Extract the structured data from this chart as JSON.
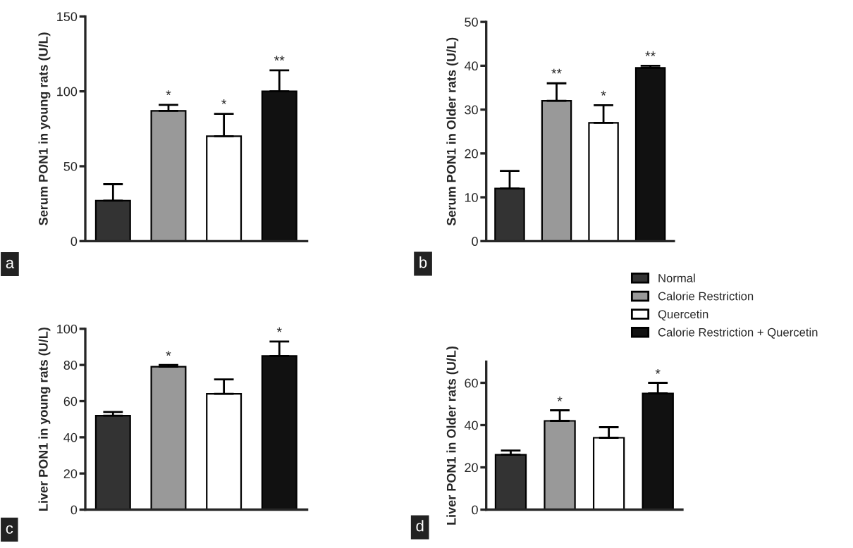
{
  "chart_data": [
    {
      "type": "bar",
      "ylabel": "Serum PON1 in young rats (U/L)",
      "categories": [
        null
      ],
      "ylim": [
        0,
        150
      ],
      "yticks": [
        0,
        50,
        100,
        150
      ],
      "annotations": [
        "a"
      ],
      "series": [
        {
          "color": "#333333",
          "values": [
            27
          ],
          "errors": [
            11
          ]
        },
        {
          "color": "#999999",
          "values": [
            87
          ],
          "errors": [
            4
          ],
          "value_labels": [
            "*"
          ]
        },
        {
          "color": "#ffffff",
          "values": [
            70
          ],
          "errors": [
            15
          ],
          "value_labels": [
            "*"
          ]
        },
        {
          "color": "#111111",
          "values": [
            100
          ],
          "errors": [
            14
          ],
          "value_labels": [
            "**"
          ]
        }
      ]
    },
    {
      "type": "bar",
      "ylabel": "Serum PON1 in Older rats (U/L)",
      "categories": [
        null
      ],
      "ylim": [
        0,
        50
      ],
      "yticks": [
        0,
        10,
        20,
        30,
        40,
        50
      ],
      "annotations": [
        "b"
      ],
      "legend": "bottom right",
      "series": [
        {
          "name": "Normal",
          "color": "#333333",
          "values": [
            12
          ],
          "errors": [
            4
          ]
        },
        {
          "name": "Calorie Restriction",
          "color": "#999999",
          "values": [
            32
          ],
          "errors": [
            4
          ],
          "value_labels": [
            "**"
          ]
        },
        {
          "name": "Quercetin",
          "color": "#ffffff",
          "values": [
            27
          ],
          "errors": [
            4
          ],
          "value_labels": [
            "*"
          ]
        },
        {
          "name": "Calorie Restriction + Quercetin",
          "color": "#111111",
          "values": [
            39.5
          ],
          "errors": [
            0.5
          ],
          "value_labels": [
            "**"
          ]
        }
      ]
    },
    {
      "type": "bar",
      "ylabel": "Liver PON1 in young rats (U/L)",
      "categories": [
        null
      ],
      "ylim": [
        0,
        100
      ],
      "yticks": [
        0,
        20,
        40,
        60,
        80,
        100
      ],
      "annotations": [
        "c"
      ],
      "series": [
        {
          "color": "#333333",
          "values": [
            52
          ],
          "errors": [
            2
          ]
        },
        {
          "color": "#999999",
          "values": [
            79
          ],
          "errors": [
            1
          ],
          "value_labels": [
            "*"
          ]
        },
        {
          "color": "#ffffff",
          "values": [
            64
          ],
          "errors": [
            8
          ]
        },
        {
          "color": "#111111",
          "values": [
            85
          ],
          "errors": [
            8
          ],
          "value_labels": [
            "*"
          ]
        }
      ]
    },
    {
      "type": "bar",
      "ylabel": "Liver PON1 in Older rats (U/L)",
      "categories": [
        null
      ],
      "ylim": [
        0,
        70
      ],
      "yticks": [
        0,
        20,
        40,
        60
      ],
      "annotations": [
        "d"
      ],
      "series": [
        {
          "color": "#333333",
          "values": [
            26
          ],
          "errors": [
            2
          ]
        },
        {
          "color": "#999999",
          "values": [
            42
          ],
          "errors": [
            5
          ],
          "value_labels": [
            "*"
          ]
        },
        {
          "color": "#ffffff",
          "values": [
            34
          ],
          "errors": [
            5
          ]
        },
        {
          "color": "#111111",
          "values": [
            55
          ],
          "errors": [
            5
          ],
          "value_labels": [
            "*"
          ]
        }
      ]
    }
  ]
}
